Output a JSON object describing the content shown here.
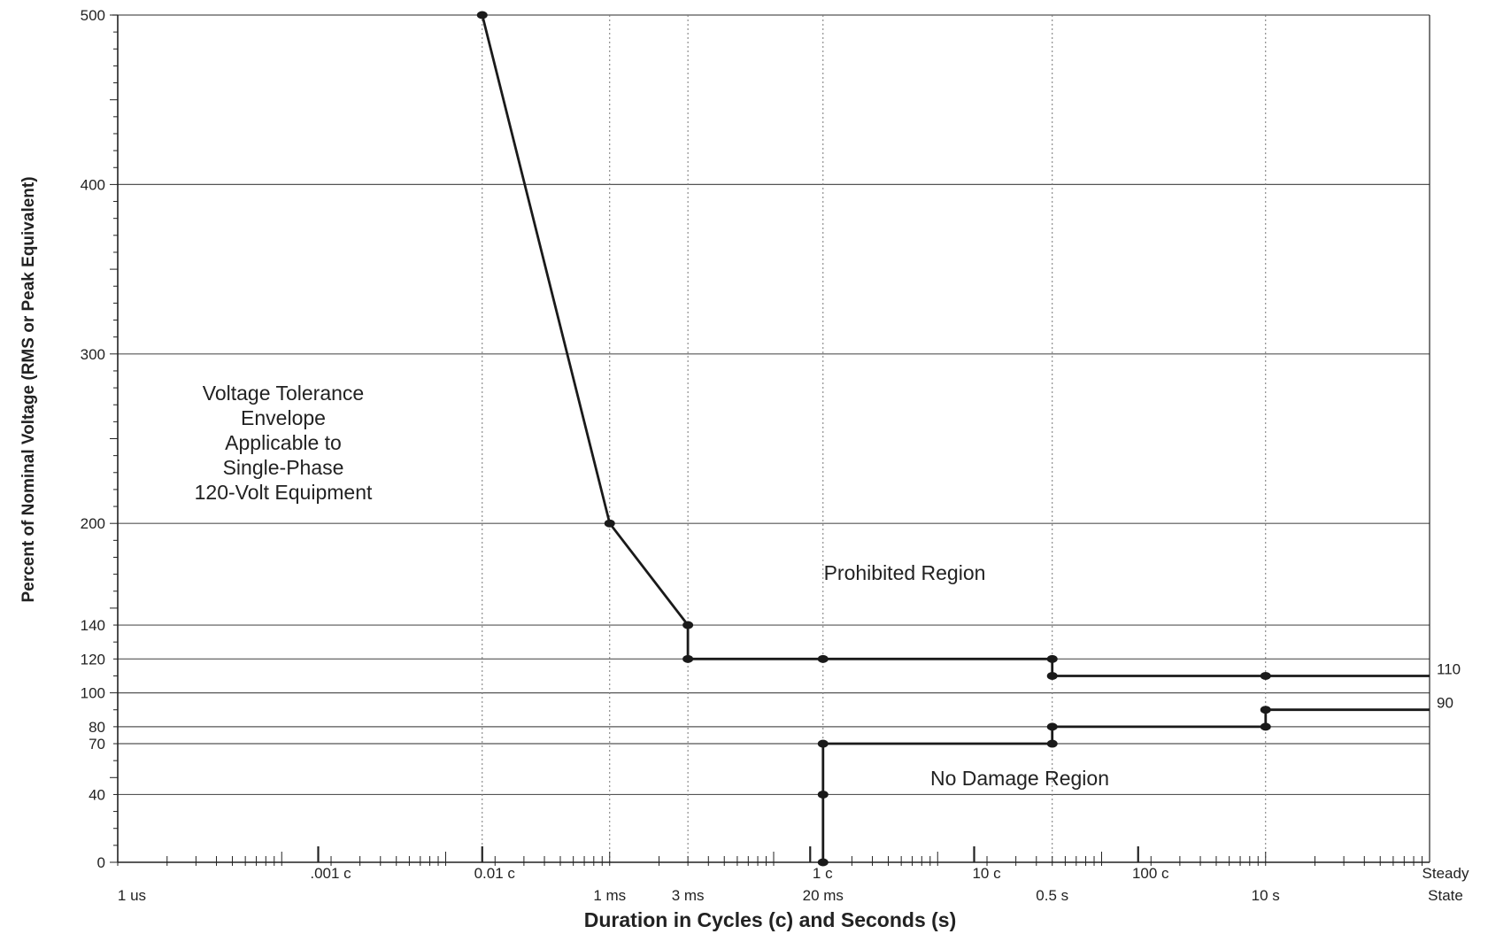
{
  "chart_data": {
    "type": "line",
    "title": "",
    "xlabel": "Duration in Cycles (c) and Seconds (s)",
    "ylabel": "Percent of Nominal Voltage (RMS or Peak Equivalent)",
    "x_scale": "log",
    "x_range_seconds": [
      1e-06,
      100
    ],
    "ylim": [
      0,
      500
    ],
    "grid": true,
    "y_tick_labels": [
      "0",
      "40",
      "70",
      "80",
      "100",
      "120",
      "140",
      "200",
      "300",
      "400",
      "500"
    ],
    "y_ticks": [
      0,
      40,
      70,
      80,
      100,
      120,
      140,
      200,
      300,
      400,
      500
    ],
    "x_tick_labels_top_row": [
      {
        "label": ".001 c",
        "x_seconds": 1.67e-05
      },
      {
        "label": "0.01 c",
        "x_seconds": 0.000167
      },
      {
        "label": "1 c",
        "x_seconds": 0.0167
      },
      {
        "label": "10 c",
        "x_seconds": 0.167
      },
      {
        "label": "100 c",
        "x_seconds": 1.67
      },
      {
        "label": "Steady",
        "x_seconds": 100
      }
    ],
    "x_tick_labels_bottom_row": [
      {
        "label": "1 us",
        "x_seconds": 1e-06
      },
      {
        "label": "1 ms",
        "x_seconds": 0.001
      },
      {
        "label": "3 ms",
        "x_seconds": 0.003
      },
      {
        "label": "20 ms",
        "x_seconds": 0.02
      },
      {
        "label": "0.5 s",
        "x_seconds": 0.5
      },
      {
        "label": "10 s",
        "x_seconds": 10
      },
      {
        "label": "State",
        "x_seconds": 100
      }
    ],
    "series": [
      {
        "x_seconds": [
          0.000167,
          0.001,
          0.003,
          0.003,
          0.02,
          0.5,
          0.5,
          10,
          100
        ],
        "y": [
          500,
          200,
          140,
          120,
          120,
          120,
          110,
          110,
          110
        ]
      },
      {
        "x_seconds": [
          0.02,
          0.02,
          0.02,
          0.5,
          0.5,
          10,
          10,
          100
        ],
        "y": [
          0,
          40,
          70,
          70,
          80,
          80,
          90,
          90
        ]
      }
    ],
    "markers": [
      {
        "x_seconds": 0.000167,
        "y": 500
      },
      {
        "x_seconds": 0.001,
        "y": 200
      },
      {
        "x_seconds": 0.003,
        "y": 140
      },
      {
        "x_seconds": 0.003,
        "y": 120
      },
      {
        "x_seconds": 0.02,
        "y": 120
      },
      {
        "x_seconds": 0.5,
        "y": 120
      },
      {
        "x_seconds": 0.5,
        "y": 110
      },
      {
        "x_seconds": 10,
        "y": 110
      },
      {
        "x_seconds": 0.02,
        "y": 0
      },
      {
        "x_seconds": 0.02,
        "y": 40
      },
      {
        "x_seconds": 0.02,
        "y": 70
      },
      {
        "x_seconds": 0.5,
        "y": 70
      },
      {
        "x_seconds": 0.5,
        "y": 80
      },
      {
        "x_seconds": 10,
        "y": 80
      },
      {
        "x_seconds": 10,
        "y": 90
      }
    ],
    "end_labels": [
      {
        "text": "110",
        "y": 110
      },
      {
        "text": "90",
        "y": 90
      }
    ],
    "annotations": [
      {
        "id": "envelope",
        "lines": [
          "Voltage Tolerance",
          "Envelope",
          "Applicable to",
          "Single-Phase",
          "120-Volt Equipment"
        ]
      },
      {
        "id": "prohibited",
        "lines": [
          "Prohibited Region"
        ]
      },
      {
        "id": "nodamage",
        "lines": [
          "No Damage Region"
        ]
      }
    ],
    "vertical_guides_seconds": [
      0.000167,
      0.001,
      0.003,
      0.02,
      0.5,
      10
    ],
    "colors": {
      "line": "#1a1a1a",
      "grid": "#555555",
      "guide": "#777777",
      "text": "#222222",
      "background": "#ffffff"
    }
  }
}
